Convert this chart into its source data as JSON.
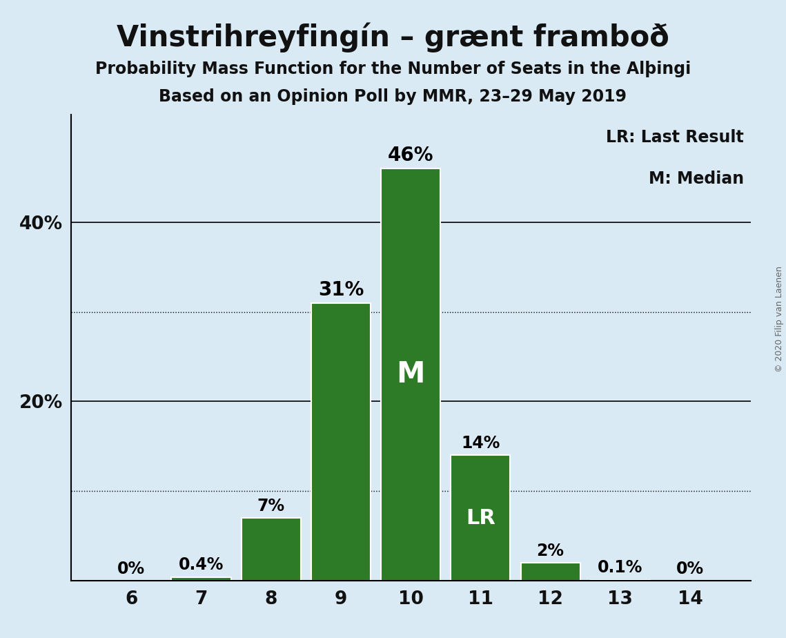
{
  "title": "Vinstrihreyfingín – grænt framboð",
  "subtitle1": "Probability Mass Function for the Number of Seats in the Alþingi",
  "subtitle2": "Based on an Opinion Poll by MMR, 23–29 May 2019",
  "copyright": "© 2020 Filip van Laenen",
  "categories": [
    6,
    7,
    8,
    9,
    10,
    11,
    12,
    13,
    14
  ],
  "values": [
    0.0,
    0.4,
    7.0,
    31.0,
    46.0,
    14.0,
    2.0,
    0.1,
    0.0
  ],
  "labels": [
    "0%",
    "0.4%",
    "7%",
    "31%",
    "46%",
    "14%",
    "2%",
    "0.1%",
    "0%"
  ],
  "bar_color": "#2d7a27",
  "background_color": "#daeaf5",
  "median_seat": 10,
  "lr_seat": 11,
  "dotted_lines": [
    10,
    30
  ],
  "solid_lines": [
    20,
    40
  ],
  "ylim": [
    0,
    52
  ],
  "legend_lr": "LR: Last Result",
  "legend_m": "M: Median"
}
